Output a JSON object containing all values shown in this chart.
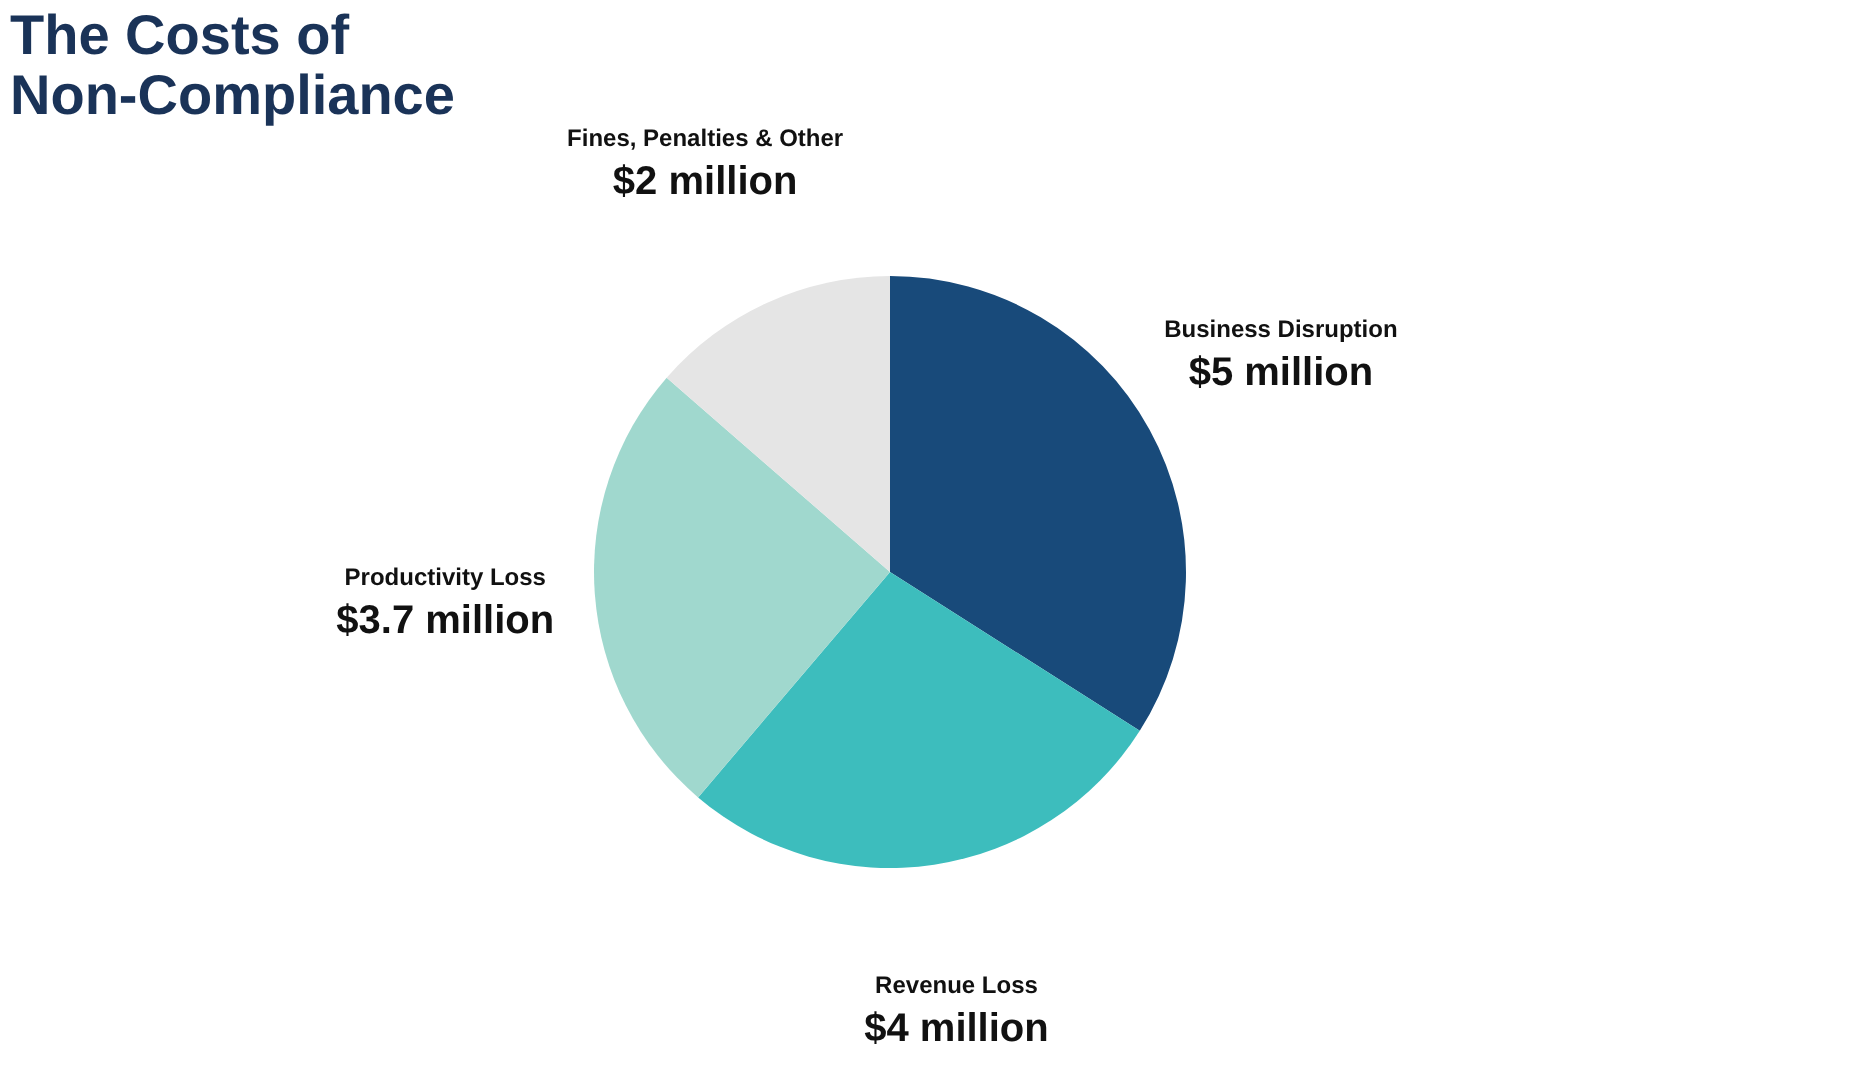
{
  "chart_data": {
    "type": "pie",
    "title": "The Costs of Non-Compliance",
    "categories": [
      "Business Disruption",
      "Revenue Loss",
      "Productivity Loss",
      "Fines, Penalties & Other"
    ],
    "values": [
      5,
      4,
      3.7,
      2
    ],
    "value_labels": [
      "$5 million",
      "$4 million",
      "$3.7 million",
      "$2 million"
    ],
    "colors": [
      "#184a7a",
      "#3dbdbd",
      "#a0d8ce",
      "#e5e5e5"
    ],
    "legend": false
  }
}
